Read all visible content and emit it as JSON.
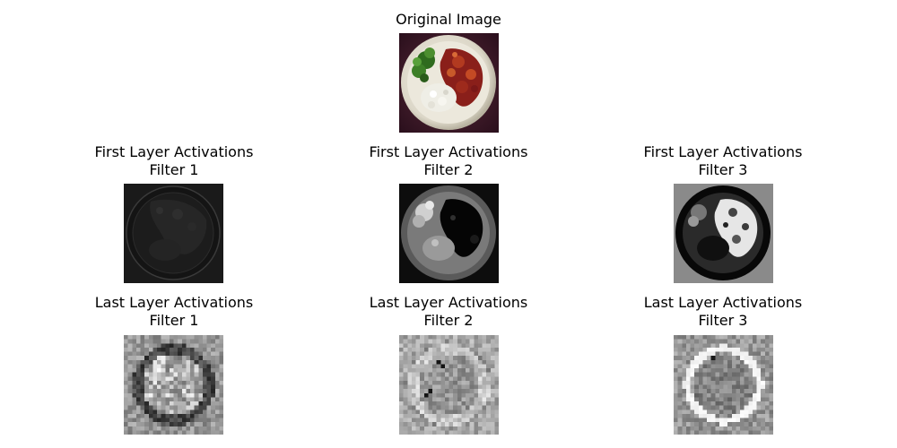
{
  "original": {
    "title": "Original Image"
  },
  "first_layer": [
    {
      "title": "First Layer Activations",
      "filter": "Filter 1"
    },
    {
      "title": "First Layer Activations",
      "filter": "Filter 2"
    },
    {
      "title": "First Layer Activations",
      "filter": "Filter 3"
    }
  ],
  "last_layer": [
    {
      "title": "Last Layer Activations",
      "filter": "Filter 1"
    },
    {
      "title": "Last Layer Activations",
      "filter": "Filter 2"
    },
    {
      "title": "Last Layer Activations",
      "filter": "Filter 3"
    }
  ]
}
